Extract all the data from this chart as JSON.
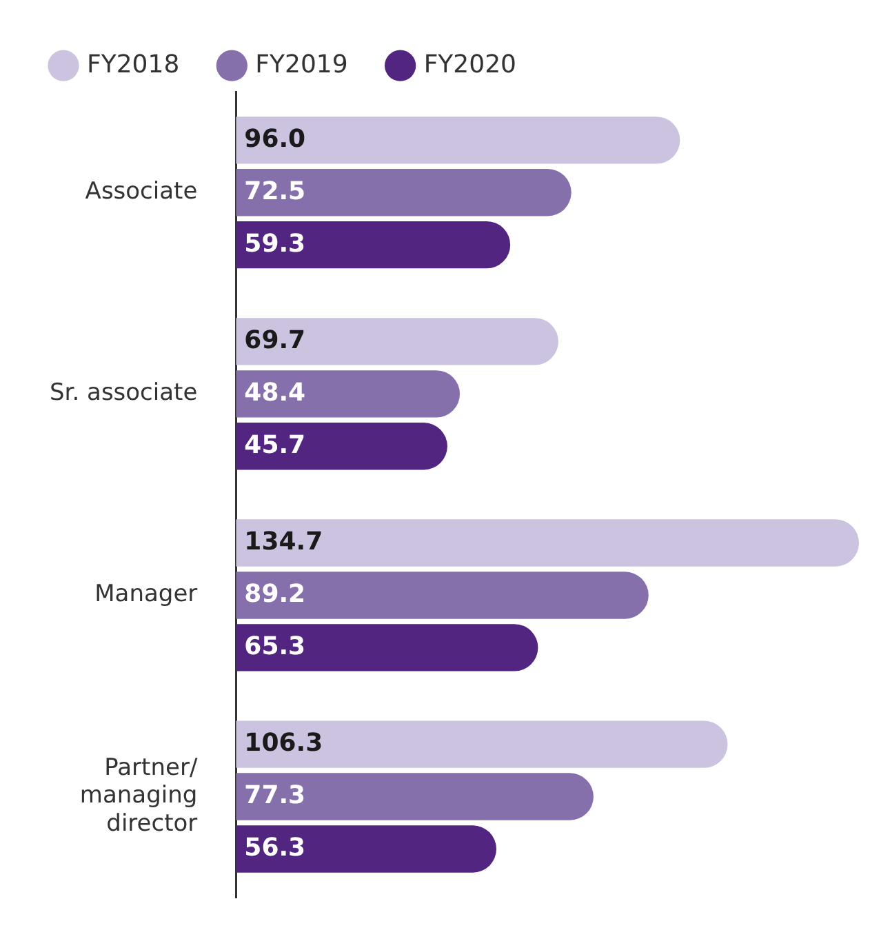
{
  "chart_data": {
    "type": "bar",
    "orientation": "horizontal",
    "categories": [
      "Associate",
      "Sr. associate",
      "Manager",
      "Partner/ managing director"
    ],
    "series": [
      {
        "name": "FY2018",
        "color": "#cbc3e0",
        "values": [
          96.0,
          69.7,
          134.7,
          106.3
        ],
        "value_labels": [
          "96.0",
          "69.7",
          "134.7",
          "106.3"
        ]
      },
      {
        "name": "FY2019",
        "color": "#8570ab",
        "values": [
          72.5,
          48.4,
          89.2,
          77.3
        ],
        "value_labels": [
          "72.5",
          "48.4",
          "89.2",
          "77.3"
        ]
      },
      {
        "name": "FY2020",
        "color": "#512580",
        "values": [
          59.3,
          45.7,
          65.3,
          56.3
        ],
        "value_labels": [
          "59.3",
          "45.7",
          "65.3",
          "56.3"
        ]
      }
    ],
    "legend": "top left"
  }
}
